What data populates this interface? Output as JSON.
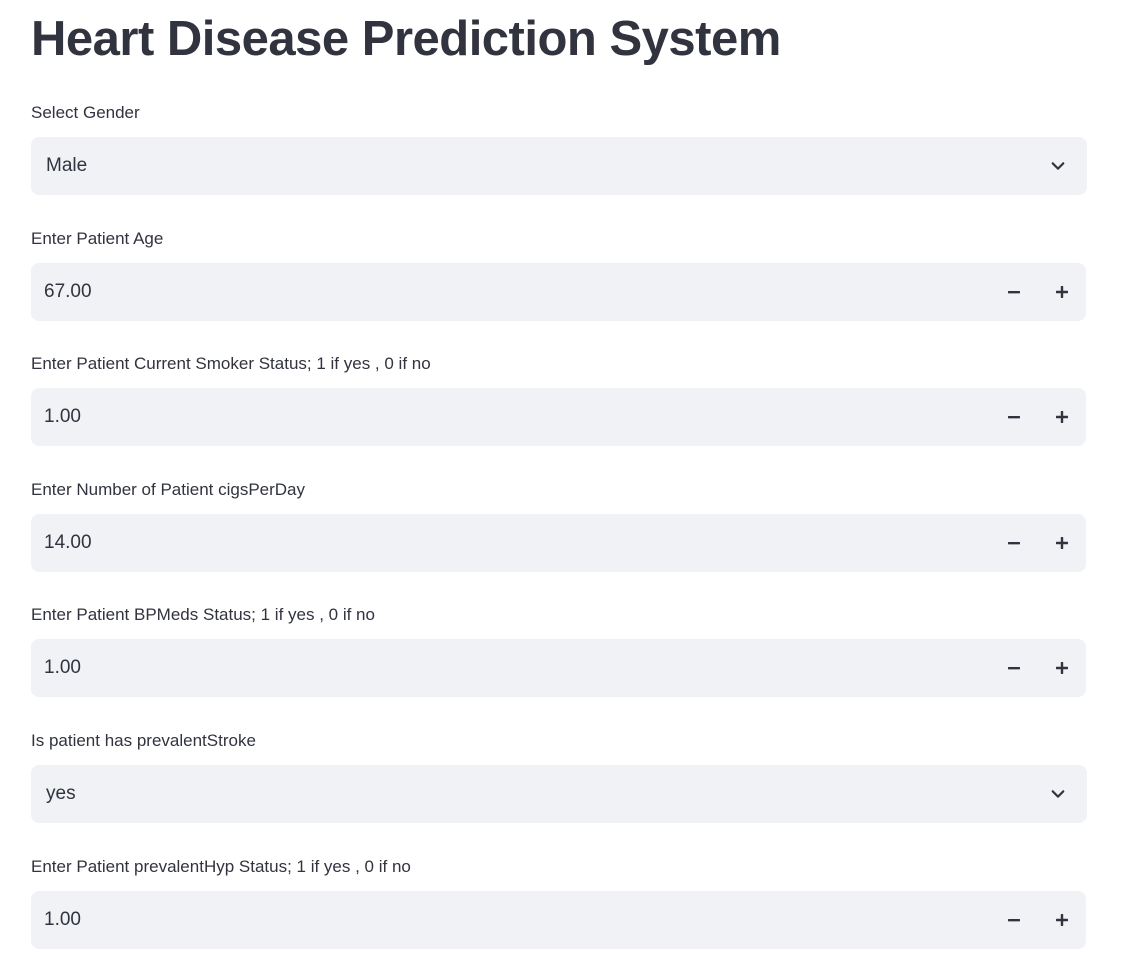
{
  "page": {
    "title": "Heart Disease Prediction System"
  },
  "fields": [
    {
      "label": "Select Gender",
      "type": "select",
      "value": "Male",
      "icon": "chevron-down-icon"
    },
    {
      "label": "Enter Patient Age",
      "type": "number",
      "value": "67.00",
      "decrement_icon": "minus-icon",
      "increment_icon": "plus-icon"
    },
    {
      "label": "Enter Patient Current Smoker Status; 1 if yes , 0 if no",
      "type": "number",
      "value": "1.00",
      "decrement_icon": "minus-icon",
      "increment_icon": "plus-icon"
    },
    {
      "label": "Enter Number of Patient cigsPerDay",
      "type": "number",
      "value": "14.00",
      "decrement_icon": "minus-icon",
      "increment_icon": "plus-icon"
    },
    {
      "label": "Enter Patient BPMeds Status; 1 if yes , 0 if no",
      "type": "number",
      "value": "1.00",
      "decrement_icon": "minus-icon",
      "increment_icon": "plus-icon"
    },
    {
      "label": "Is patient has prevalentStroke",
      "type": "select",
      "value": "yes",
      "icon": "chevron-down-icon"
    },
    {
      "label": "Enter Patient prevalentHyp Status; 1 if yes , 0 if no",
      "type": "number",
      "value": "1.00",
      "decrement_icon": "minus-icon",
      "increment_icon": "plus-icon"
    }
  ],
  "colors": {
    "text": "#31333f",
    "input_background": "#f0f2f6",
    "page_background": "#ffffff"
  }
}
